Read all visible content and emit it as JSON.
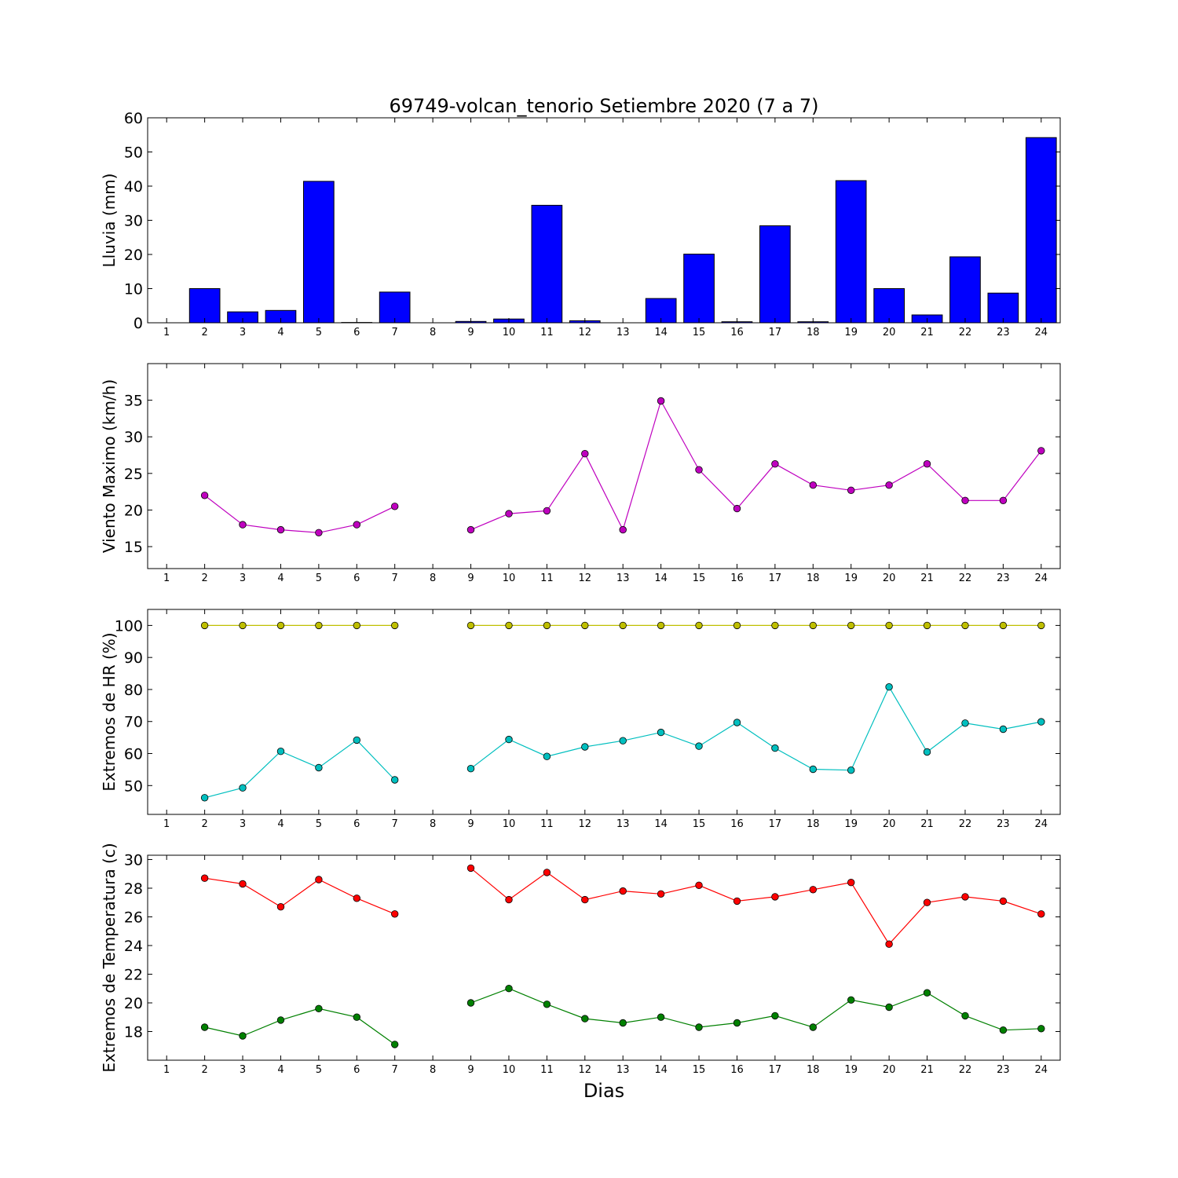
{
  "title": "69749-volcan_tenorio Setiembre 2020  (7 a 7)",
  "xlabel": "Dias",
  "colors": {
    "rain": "#0000ff",
    "wind": "#bf00bf",
    "hr_max": "#bfbf00",
    "hr_min": "#00bfbf",
    "temp_max": "#ff0000",
    "temp_min": "#008000"
  },
  "chart_data": [
    {
      "type": "bar",
      "ylabel": "Lluvia (mm)",
      "ylim": [
        0,
        60
      ],
      "yticks": [
        0,
        10,
        20,
        30,
        40,
        50,
        60
      ],
      "categories": [
        "1",
        "2",
        "3",
        "4",
        "5",
        "6",
        "7",
        "8",
        "9",
        "10",
        "11",
        "12",
        "13",
        "14",
        "15",
        "16",
        "17",
        "18",
        "19",
        "20",
        "21",
        "22",
        "23",
        "24"
      ],
      "values": [
        0,
        10,
        3.2,
        3.6,
        41.4,
        0.1,
        9,
        0,
        0.4,
        1.1,
        34.4,
        0.6,
        0,
        7.1,
        20.1,
        0.3,
        28.4,
        0.3,
        41.6,
        10,
        2.3,
        19.3,
        8.7,
        54.2
      ],
      "grid": false
    },
    {
      "type": "line",
      "ylabel": "Viento Maximo (km/h)",
      "ylim": [
        12,
        40
      ],
      "yticks": [
        15,
        20,
        25,
        30,
        35
      ],
      "x": [
        1,
        2,
        3,
        4,
        5,
        6,
        7,
        8,
        9,
        10,
        11,
        12,
        13,
        14,
        15,
        16,
        17,
        18,
        19,
        20,
        21,
        22,
        23,
        24
      ],
      "series": [
        {
          "values": [
            null,
            22,
            18,
            17.3,
            16.9,
            18,
            20.5,
            null,
            17.3,
            19.5,
            19.9,
            27.7,
            17.3,
            34.9,
            25.5,
            20.2,
            26.3,
            23.4,
            22.7,
            23.4,
            26.3,
            21.3,
            21.3,
            28.1
          ]
        }
      ],
      "grid": false
    },
    {
      "type": "line",
      "ylabel": "Extremos de HR (%)",
      "ylim": [
        41,
        105
      ],
      "yticks": [
        50,
        60,
        70,
        80,
        90,
        100
      ],
      "x": [
        1,
        2,
        3,
        4,
        5,
        6,
        7,
        8,
        9,
        10,
        11,
        12,
        13,
        14,
        15,
        16,
        17,
        18,
        19,
        20,
        21,
        22,
        23,
        24
      ],
      "series": [
        {
          "values": [
            null,
            100,
            100,
            100,
            100,
            100,
            100,
            null,
            100,
            100,
            100,
            100,
            100,
            100,
            100,
            100,
            100,
            100,
            100,
            100,
            100,
            100,
            100,
            100
          ]
        },
        {
          "values": [
            null,
            46.2,
            49.3,
            60.7,
            55.6,
            64.2,
            51.8,
            null,
            55.3,
            64.4,
            59.1,
            62.1,
            64,
            66.6,
            62.3,
            69.7,
            61.7,
            55.1,
            54.8,
            80.8,
            60.5,
            69.5,
            67.6,
            69.9
          ]
        }
      ],
      "grid": false
    },
    {
      "type": "line",
      "ylabel": "Extremos de Temperatura (c)",
      "ylim": [
        16,
        30.3
      ],
      "yticks": [
        18,
        20,
        22,
        24,
        26,
        28,
        30
      ],
      "x": [
        1,
        2,
        3,
        4,
        5,
        6,
        7,
        8,
        9,
        10,
        11,
        12,
        13,
        14,
        15,
        16,
        17,
        18,
        19,
        20,
        21,
        22,
        23,
        24
      ],
      "series": [
        {
          "values": [
            null,
            28.7,
            28.3,
            26.7,
            28.6,
            27.3,
            26.2,
            null,
            29.4,
            27.2,
            29.1,
            27.2,
            27.8,
            27.6,
            28.2,
            27.1,
            27.4,
            27.9,
            28.4,
            24.1,
            27,
            27.4,
            27.1,
            26.2
          ]
        },
        {
          "values": [
            null,
            18.3,
            17.7,
            18.8,
            19.6,
            19,
            17.1,
            null,
            20,
            21,
            19.9,
            18.9,
            18.6,
            19,
            18.3,
            18.6,
            19.1,
            18.3,
            20.2,
            19.7,
            20.7,
            19.1,
            18.1,
            18.2
          ]
        }
      ],
      "grid": false
    }
  ]
}
